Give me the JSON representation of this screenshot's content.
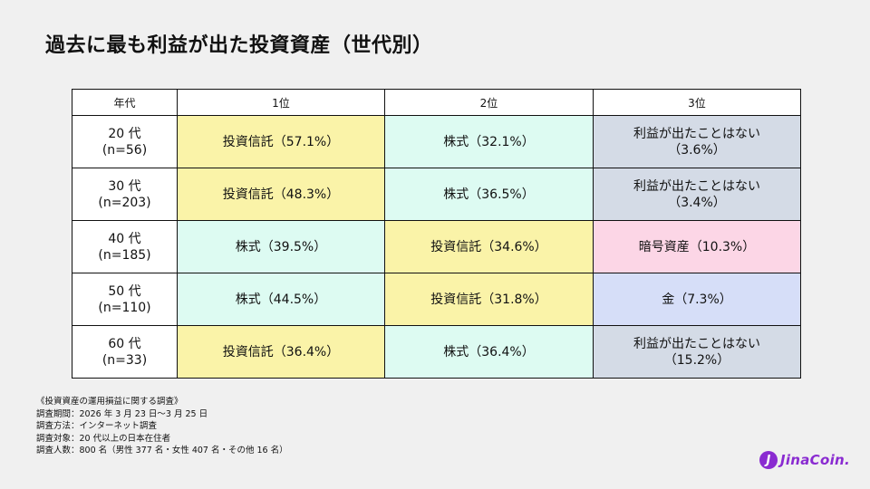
{
  "title": "過去に最も利益が出た投資資産（世代別）",
  "table": {
    "headers": [
      "年代",
      "1位",
      "2位",
      "3位"
    ],
    "rows": [
      {
        "era": [
          "20 代",
          "(n=56)"
        ],
        "cells": [
          {
            "lines": [
              "投資信託（57.1%）"
            ],
            "color": "#faf3a8"
          },
          {
            "lines": [
              "株式（32.1%）"
            ],
            "color": "#ddfbf2"
          },
          {
            "lines": [
              "利益が出たことはない",
              "（3.6%）"
            ],
            "color": "#d4dbe6"
          }
        ]
      },
      {
        "era": [
          "30 代",
          "(n=203)"
        ],
        "cells": [
          {
            "lines": [
              "投資信託（48.3%）"
            ],
            "color": "#faf3a8"
          },
          {
            "lines": [
              "株式（36.5%）"
            ],
            "color": "#ddfbf2"
          },
          {
            "lines": [
              "利益が出たことはない",
              "（3.4%）"
            ],
            "color": "#d4dbe6"
          }
        ]
      },
      {
        "era": [
          "40 代",
          "(n=185)"
        ],
        "cells": [
          {
            "lines": [
              "株式（39.5%）"
            ],
            "color": "#ddfbf2"
          },
          {
            "lines": [
              "投資信託（34.6%）"
            ],
            "color": "#faf3a8"
          },
          {
            "lines": [
              "暗号資産（10.3%）"
            ],
            "color": "#fcd6e6"
          }
        ]
      },
      {
        "era": [
          "50 代",
          "(n=110)"
        ],
        "cells": [
          {
            "lines": [
              "株式（44.5%）"
            ],
            "color": "#ddfbf2"
          },
          {
            "lines": [
              "投資信託（31.8%）"
            ],
            "color": "#faf3a8"
          },
          {
            "lines": [
              "金（7.3%）"
            ],
            "color": "#d6def8"
          }
        ]
      },
      {
        "era": [
          "60 代",
          "(n=33)"
        ],
        "cells": [
          {
            "lines": [
              "投資信託（36.4%）"
            ],
            "color": "#faf3a8"
          },
          {
            "lines": [
              "株式（36.4%）"
            ],
            "color": "#ddfbf2"
          },
          {
            "lines": [
              "利益が出たことはない",
              "（15.2%）"
            ],
            "color": "#d4dbe6"
          }
        ]
      }
    ]
  },
  "notes": {
    "heading": "《投資資産の運用損益に関する調査》",
    "period": "調査期間：2026 年 3 月 23 日〜3 月 25 日",
    "method": "調査方法：インターネット調査",
    "target": "調査対象：20 代以上の日本在住者",
    "count": "調査人数：800 名（男性 377 名・女性 407 名・その他 16 名）"
  },
  "logo": {
    "mark": "J",
    "text": "JinaCoin."
  }
}
